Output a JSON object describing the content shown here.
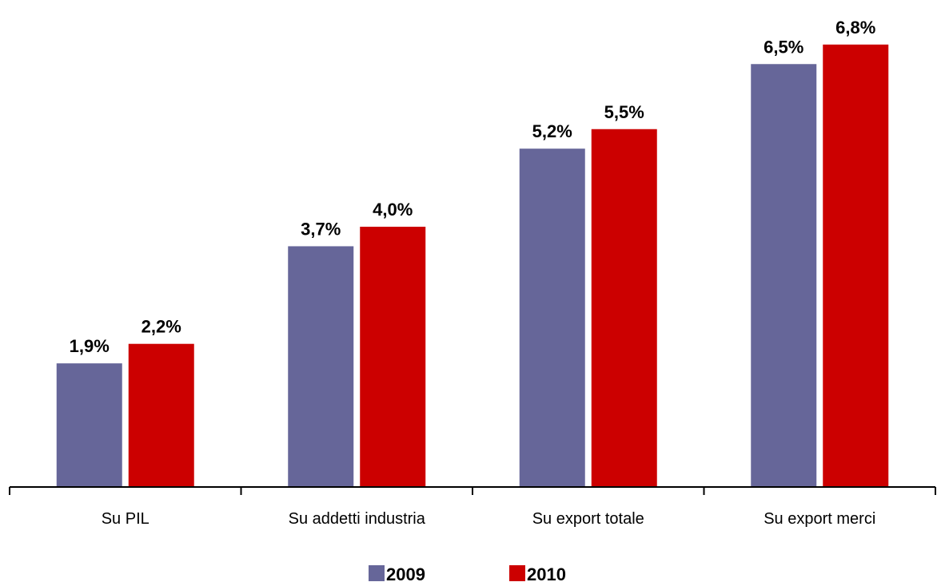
{
  "chart_data": {
    "type": "bar",
    "categories": [
      "Su PIL",
      "Su addetti industria",
      "Su export totale",
      "Su export merci"
    ],
    "series": [
      {
        "name": "2009",
        "color": "#666699",
        "values": [
          1.9,
          3.7,
          5.2,
          6.5
        ],
        "labels": [
          "1,9%",
          "3,7%",
          "5,2%",
          "6,5%"
        ]
      },
      {
        "name": "2010",
        "color": "#cc0000",
        "values": [
          2.2,
          4.0,
          5.5,
          6.8
        ],
        "labels": [
          "2,2%",
          "4,0%",
          "5,5%",
          "6,8%"
        ]
      }
    ],
    "ylim": [
      0,
      7
    ],
    "grid": false,
    "legend_position": "bottom-center"
  }
}
